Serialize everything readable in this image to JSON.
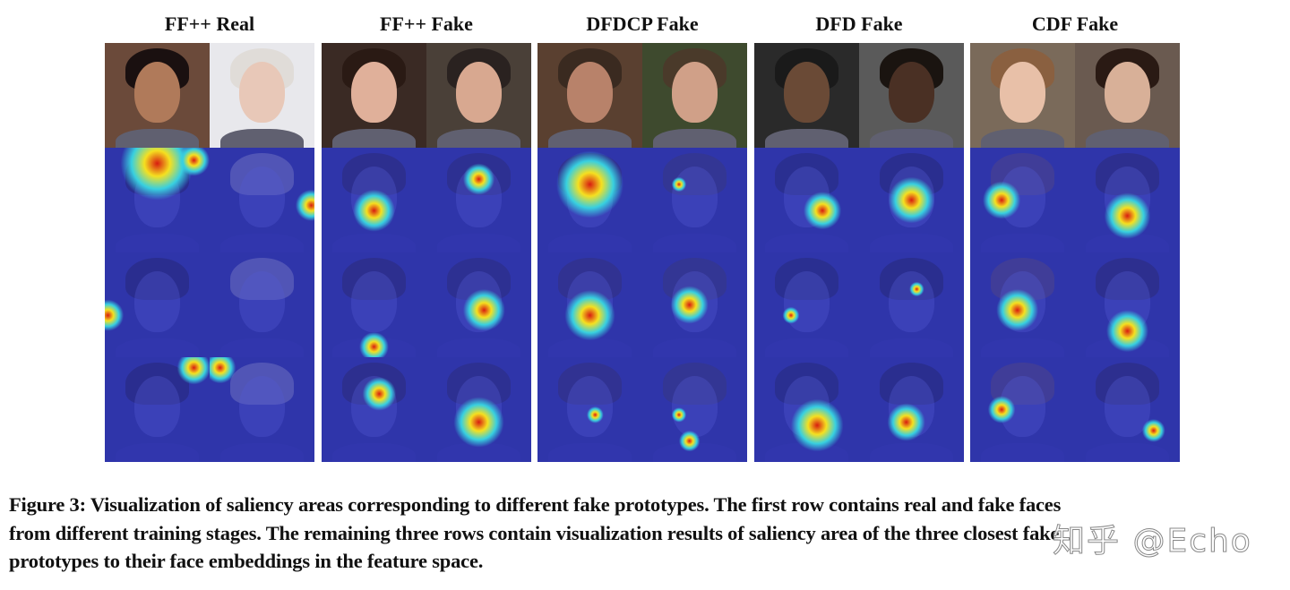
{
  "figure": {
    "groups": [
      {
        "title": "FF++ Real"
      },
      {
        "title": "FF++ Fake"
      },
      {
        "title": "DFDCP Fake"
      },
      {
        "title": "DFD Fake"
      },
      {
        "title": "CDF Fake"
      }
    ],
    "rows": 4,
    "columns_per_group": 2,
    "heatmap_colormap": [
      "#d81c10",
      "#f5e020",
      "#38d0e0",
      "#2838c8"
    ]
  },
  "caption": {
    "lines": [
      "Figure 3: Visualization of saliency areas corresponding to different fake prototypes. The first row contains real and fake faces",
      "from different training stages. The remaining three rows contain visualization results of saliency area of the three closest fake",
      "prototypes to their face embeddings in the feature space."
    ]
  },
  "watermark": "知乎 @Echo"
}
